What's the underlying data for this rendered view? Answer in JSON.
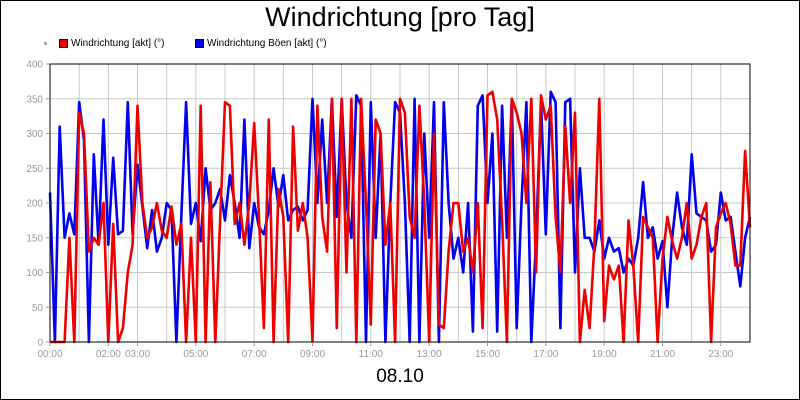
{
  "chart_data": {
    "type": "line",
    "title": "Windrichtung [pro Tag]",
    "date_label": "08.10",
    "ylim": [
      0,
      400
    ],
    "yticks": [
      "0",
      "50",
      "100",
      "150",
      "200",
      "250",
      "300",
      "350",
      "400"
    ],
    "xlim": [
      "00:00",
      "24:00"
    ],
    "xticks": [
      "00:00",
      "02:00",
      "03:00",
      "05:00",
      "07:00",
      "09:00",
      "11:00",
      "13:00",
      "15:00",
      "17:00",
      "19:00",
      "21:00",
      "23:00"
    ],
    "grid": true,
    "legend_position": "top-left",
    "series": [
      {
        "name": "Windrichtung Böen [akt] (°)",
        "color": "#0000ee",
        "points": [
          [
            "00:00",
            215
          ],
          [
            "00:10",
            0
          ],
          [
            "00:20",
            310
          ],
          [
            "00:30",
            150
          ],
          [
            "00:40",
            185
          ],
          [
            "00:50",
            155
          ],
          [
            "01:00",
            345
          ],
          [
            "01:10",
            290
          ],
          [
            "01:20",
            0
          ],
          [
            "01:30",
            270
          ],
          [
            "01:40",
            140
          ],
          [
            "01:50",
            320
          ],
          [
            "02:00",
            140
          ],
          [
            "02:10",
            265
          ],
          [
            "02:20",
            155
          ],
          [
            "02:30",
            160
          ],
          [
            "02:40",
            345
          ],
          [
            "02:50",
            155
          ],
          [
            "03:00",
            255
          ],
          [
            "03:10",
            195
          ],
          [
            "03:20",
            135
          ],
          [
            "03:30",
            190
          ],
          [
            "03:40",
            130
          ],
          [
            "03:50",
            150
          ],
          [
            "04:00",
            200
          ],
          [
            "04:10",
            190
          ],
          [
            "04:20",
            0
          ],
          [
            "04:30",
            180
          ],
          [
            "04:40",
            345
          ],
          [
            "04:50",
            170
          ],
          [
            "05:00",
            200
          ],
          [
            "05:10",
            145
          ],
          [
            "05:20",
            250
          ],
          [
            "05:30",
            190
          ],
          [
            "05:40",
            200
          ],
          [
            "05:50",
            220
          ],
          [
            "06:00",
            175
          ],
          [
            "06:10",
            240
          ],
          [
            "06:20",
            200
          ],
          [
            "06:30",
            150
          ],
          [
            "06:40",
            320
          ],
          [
            "06:50",
            135
          ],
          [
            "07:00",
            200
          ],
          [
            "07:10",
            165
          ],
          [
            "07:20",
            155
          ],
          [
            "07:30",
            190
          ],
          [
            "07:40",
            250
          ],
          [
            "07:50",
            195
          ],
          [
            "08:00",
            240
          ],
          [
            "08:10",
            175
          ],
          [
            "08:20",
            190
          ],
          [
            "08:30",
            195
          ],
          [
            "08:40",
            175
          ],
          [
            "08:50",
            190
          ],
          [
            "09:00",
            350
          ],
          [
            "09:10",
            200
          ],
          [
            "09:20",
            320
          ],
          [
            "09:30",
            200
          ],
          [
            "09:40",
            350
          ],
          [
            "09:50",
            180
          ],
          [
            "10:00",
            350
          ],
          [
            "10:10",
            200
          ],
          [
            "10:20",
            150
          ],
          [
            "10:30",
            355
          ],
          [
            "10:40",
            340
          ],
          [
            "10:50",
            0
          ],
          [
            "11:00",
            345
          ],
          [
            "11:10",
            150
          ],
          [
            "11:20",
            300
          ],
          [
            "11:30",
            0
          ],
          [
            "11:40",
            200
          ],
          [
            "11:50",
            345
          ],
          [
            "12:00",
            330
          ],
          [
            "12:10",
            200
          ],
          [
            "12:20",
            0
          ],
          [
            "12:30",
            350
          ],
          [
            "12:40",
            0
          ],
          [
            "12:50",
            300
          ],
          [
            "13:00",
            150
          ],
          [
            "13:10",
            345
          ],
          [
            "13:20",
            0
          ],
          [
            "13:30",
            345
          ],
          [
            "13:40",
            200
          ],
          [
            "13:50",
            120
          ],
          [
            "14:00",
            150
          ],
          [
            "14:10",
            100
          ],
          [
            "14:20",
            200
          ],
          [
            "14:30",
            15
          ],
          [
            "14:40",
            340
          ],
          [
            "14:50",
            355
          ],
          [
            "15:00",
            200
          ],
          [
            "15:10",
            300
          ],
          [
            "15:20",
            15
          ],
          [
            "15:30",
            340
          ],
          [
            "15:40",
            150
          ],
          [
            "15:50",
            350
          ],
          [
            "16:00",
            20
          ],
          [
            "16:10",
            200
          ],
          [
            "16:20",
            345
          ],
          [
            "16:30",
            0
          ],
          [
            "16:40",
            150
          ],
          [
            "16:50",
            345
          ],
          [
            "17:00",
            155
          ],
          [
            "17:10",
            360
          ],
          [
            "17:20",
            345
          ],
          [
            "17:30",
            20
          ],
          [
            "17:40",
            345
          ],
          [
            "17:50",
            350
          ],
          [
            "18:00",
            100
          ],
          [
            "18:10",
            250
          ],
          [
            "18:20",
            150
          ],
          [
            "18:30",
            150
          ],
          [
            "18:40",
            130
          ],
          [
            "18:50",
            175
          ],
          [
            "19:00",
            120
          ],
          [
            "19:10",
            150
          ],
          [
            "19:20",
            130
          ],
          [
            "19:30",
            135
          ],
          [
            "19:40",
            100
          ],
          [
            "19:50",
            120
          ],
          [
            "20:00",
            110
          ],
          [
            "20:10",
            150
          ],
          [
            "20:20",
            230
          ],
          [
            "20:30",
            150
          ],
          [
            "20:40",
            165
          ],
          [
            "20:50",
            120
          ],
          [
            "21:00",
            145
          ],
          [
            "21:10",
            50
          ],
          [
            "21:20",
            150
          ],
          [
            "21:30",
            215
          ],
          [
            "21:40",
            165
          ],
          [
            "21:50",
            140
          ],
          [
            "22:00",
            270
          ],
          [
            "22:10",
            185
          ],
          [
            "22:20",
            180
          ],
          [
            "22:30",
            175
          ],
          [
            "22:40",
            130
          ],
          [
            "22:50",
            140
          ],
          [
            "23:00",
            215
          ],
          [
            "23:10",
            175
          ],
          [
            "23:20",
            180
          ],
          [
            "23:30",
            130
          ],
          [
            "23:40",
            80
          ],
          [
            "23:50",
            150
          ],
          [
            "24:00",
            180
          ]
        ]
      },
      {
        "name": "Windrichtung [akt] (°)",
        "color": "#ee0000",
        "points": [
          [
            "00:00",
            0
          ],
          [
            "00:10",
            0
          ],
          [
            "00:20",
            0
          ],
          [
            "00:30",
            0
          ],
          [
            "00:40",
            150
          ],
          [
            "00:50",
            0
          ],
          [
            "01:00",
            330
          ],
          [
            "01:10",
            300
          ],
          [
            "01:20",
            130
          ],
          [
            "01:30",
            150
          ],
          [
            "01:40",
            140
          ],
          [
            "01:50",
            200
          ],
          [
            "02:00",
            0
          ],
          [
            "02:10",
            170
          ],
          [
            "02:20",
            0
          ],
          [
            "02:30",
            20
          ],
          [
            "02:40",
            100
          ],
          [
            "02:50",
            140
          ],
          [
            "03:00",
            340
          ],
          [
            "03:10",
            200
          ],
          [
            "03:20",
            150
          ],
          [
            "03:30",
            165
          ],
          [
            "03:40",
            200
          ],
          [
            "03:50",
            160
          ],
          [
            "04:00",
            150
          ],
          [
            "04:10",
            195
          ],
          [
            "04:20",
            140
          ],
          [
            "04:30",
            170
          ],
          [
            "04:40",
            0
          ],
          [
            "04:50",
            150
          ],
          [
            "05:00",
            0
          ],
          [
            "05:10",
            340
          ],
          [
            "05:20",
            0
          ],
          [
            "05:30",
            230
          ],
          [
            "05:40",
            0
          ],
          [
            "05:50",
            175
          ],
          [
            "06:00",
            345
          ],
          [
            "06:10",
            340
          ],
          [
            "06:20",
            170
          ],
          [
            "06:30",
            200
          ],
          [
            "06:40",
            140
          ],
          [
            "06:50",
            200
          ],
          [
            "07:00",
            315
          ],
          [
            "07:10",
            180
          ],
          [
            "07:20",
            20
          ],
          [
            "07:30",
            320
          ],
          [
            "07:40",
            0
          ],
          [
            "07:50",
            220
          ],
          [
            "08:00",
            180
          ],
          [
            "08:10",
            0
          ],
          [
            "08:20",
            310
          ],
          [
            "08:30",
            160
          ],
          [
            "08:40",
            200
          ],
          [
            "08:50",
            150
          ],
          [
            "09:00",
            0
          ],
          [
            "09:10",
            340
          ],
          [
            "09:20",
            180
          ],
          [
            "09:30",
            130
          ],
          [
            "09:40",
            350
          ],
          [
            "09:50",
            20
          ],
          [
            "10:00",
            350
          ],
          [
            "10:10",
            100
          ],
          [
            "10:20",
            350
          ],
          [
            "10:30",
            0
          ],
          [
            "10:40",
            350
          ],
          [
            "10:50",
            200
          ],
          [
            "11:00",
            25
          ],
          [
            "11:10",
            320
          ],
          [
            "11:20",
            300
          ],
          [
            "11:30",
            140
          ],
          [
            "11:40",
            200
          ],
          [
            "11:50",
            0
          ],
          [
            "12:00",
            350
          ],
          [
            "12:10",
            330
          ],
          [
            "12:20",
            180
          ],
          [
            "12:30",
            150
          ],
          [
            "12:40",
            340
          ],
          [
            "12:50",
            200
          ],
          [
            "13:00",
            0
          ],
          [
            "13:10",
            300
          ],
          [
            "13:20",
            25
          ],
          [
            "13:30",
            20
          ],
          [
            "13:40",
            130
          ],
          [
            "13:50",
            200
          ],
          [
            "14:00",
            200
          ],
          [
            "14:10",
            130
          ],
          [
            "14:20",
            150
          ],
          [
            "14:30",
            100
          ],
          [
            "14:40",
            200
          ],
          [
            "14:50",
            20
          ],
          [
            "15:00",
            355
          ],
          [
            "15:10",
            360
          ],
          [
            "15:20",
            320
          ],
          [
            "15:30",
            175
          ],
          [
            "15:40",
            0
          ],
          [
            "15:50",
            350
          ],
          [
            "16:00",
            330
          ],
          [
            "16:10",
            300
          ],
          [
            "16:20",
            200
          ],
          [
            "16:30",
            350
          ],
          [
            "16:40",
            100
          ],
          [
            "16:50",
            355
          ],
          [
            "17:00",
            320
          ],
          [
            "17:10",
            340
          ],
          [
            "17:20",
            180
          ],
          [
            "17:30",
            100
          ],
          [
            "17:40",
            310
          ],
          [
            "17:50",
            200
          ],
          [
            "18:00",
            330
          ],
          [
            "18:10",
            0
          ],
          [
            "18:20",
            75
          ],
          [
            "18:30",
            20
          ],
          [
            "18:40",
            140
          ],
          [
            "18:50",
            350
          ],
          [
            "19:00",
            30
          ],
          [
            "19:10",
            110
          ],
          [
            "19:20",
            90
          ],
          [
            "19:30",
            110
          ],
          [
            "19:40",
            0
          ],
          [
            "19:50",
            175
          ],
          [
            "20:00",
            110
          ],
          [
            "20:10",
            0
          ],
          [
            "20:20",
            180
          ],
          [
            "20:30",
            165
          ],
          [
            "20:40",
            150
          ],
          [
            "20:50",
            0
          ],
          [
            "21:00",
            120
          ],
          [
            "21:10",
            180
          ],
          [
            "21:20",
            145
          ],
          [
            "21:30",
            120
          ],
          [
            "21:40",
            150
          ],
          [
            "21:50",
            200
          ],
          [
            "22:00",
            120
          ],
          [
            "22:10",
            140
          ],
          [
            "22:20",
            180
          ],
          [
            "22:30",
            200
          ],
          [
            "22:40",
            0
          ],
          [
            "22:50",
            165
          ],
          [
            "23:00",
            185
          ],
          [
            "23:10",
            200
          ],
          [
            "23:20",
            170
          ],
          [
            "23:30",
            110
          ],
          [
            "23:40",
            110
          ],
          [
            "23:50",
            275
          ],
          [
            "24:00",
            165
          ]
        ]
      }
    ]
  }
}
